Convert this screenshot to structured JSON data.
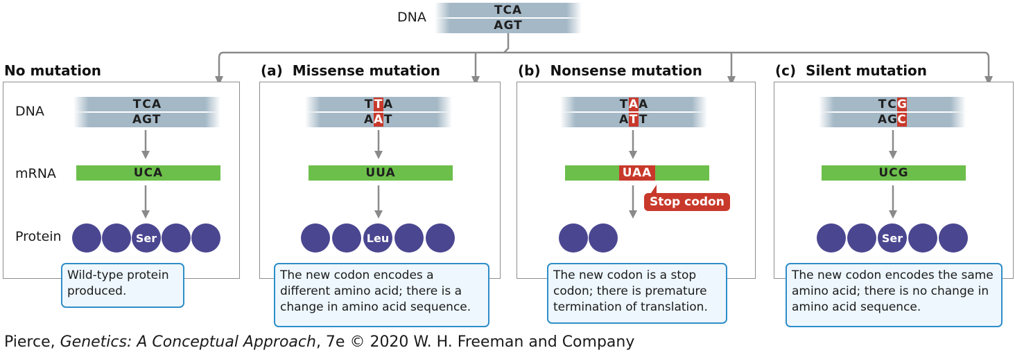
{
  "top": {
    "label": "DNA",
    "top_strand": "TCA",
    "bottom_strand": "AGT"
  },
  "labels": {
    "dna": "DNA",
    "mrna": "mRNA",
    "protein": "Protein"
  },
  "panels": [
    {
      "title": "No mutation",
      "dna_top": [
        "T",
        "C",
        "A"
      ],
      "dna_bottom": [
        "A",
        "G",
        "T"
      ],
      "mutated_index": -1,
      "mrna": "UCA",
      "mrna_highlight": false,
      "amino_acid": "Ser",
      "protein_count": 5,
      "callout": "Wild-type protein produced."
    },
    {
      "title": "(a)  Missense mutation",
      "dna_top": [
        "T",
        "T",
        "A"
      ],
      "dna_bottom": [
        "A",
        "A",
        "T"
      ],
      "mutated_index": 1,
      "mrna": "UUA",
      "mrna_highlight": false,
      "amino_acid": "Leu",
      "protein_count": 5,
      "callout": "The new codon encodes a different amino acid; there is a change in amino acid sequence."
    },
    {
      "title": "(b)  Nonsense mutation",
      "dna_top": [
        "T",
        "A",
        "A"
      ],
      "dna_bottom": [
        "A",
        "T",
        "T"
      ],
      "mutated_index": 1,
      "mrna": "UAA",
      "mrna_highlight": true,
      "stop_label": "Stop codon",
      "amino_acid": "",
      "protein_count": 2,
      "callout": "The new codon is a stop codon; there is premature termination of translation."
    },
    {
      "title": "(c)  Silent mutation",
      "dna_top": [
        "T",
        "C",
        "G"
      ],
      "dna_bottom": [
        "A",
        "G",
        "C"
      ],
      "mutated_index": 2,
      "mrna": "UCG",
      "mrna_highlight": false,
      "amino_acid": "Ser",
      "protein_count": 5,
      "callout": "The new codon encodes the same amino acid; there is no change in amino acid sequence."
    }
  ],
  "credit": {
    "before": "Pierce, ",
    "title": "Genetics: A Conceptual Approach",
    "after": ", 7e © 2020 W. H. Freeman and Company"
  },
  "colors": {
    "dna": "#a4b8c6",
    "mrna": "#6cbf4b",
    "protein": "#4a4690",
    "mutation": "#c8392b",
    "callout_border": "#2e8dc8",
    "callout_fill": "#eef7fd"
  }
}
